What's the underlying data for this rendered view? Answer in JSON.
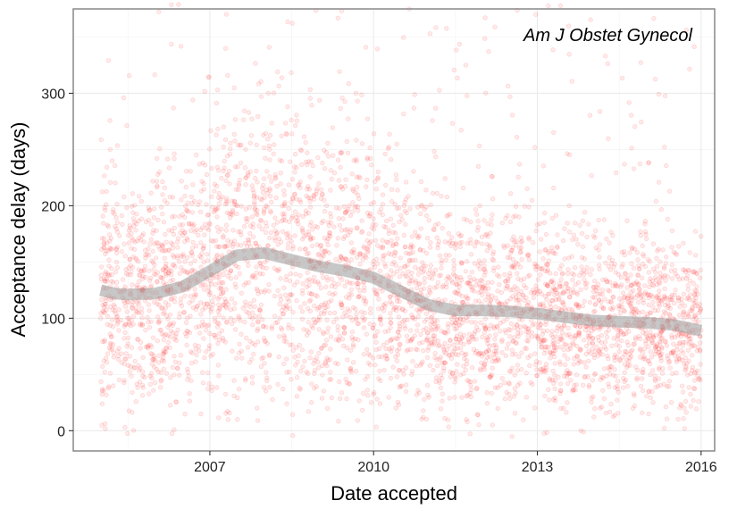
{
  "chart_data": {
    "type": "scatter",
    "annotation": "Am J Obstet Gynecol",
    "xlabel": "Date accepted",
    "ylabel": "Acceptance delay (days)",
    "x_scale": "date",
    "xlim": [
      "2004-07-01",
      "2016-04-01"
    ],
    "ylim": [
      -18,
      375
    ],
    "x_ticks": [
      {
        "date": "2007-01-01",
        "label": "2007"
      },
      {
        "date": "2010-01-01",
        "label": "2010"
      },
      {
        "date": "2013-01-01",
        "label": "2013"
      },
      {
        "date": "2016-01-01",
        "label": "2016"
      }
    ],
    "y_ticks": [
      {
        "value": 0,
        "label": "0"
      },
      {
        "value": 100,
        "label": "100"
      },
      {
        "value": 200,
        "label": "200"
      },
      {
        "value": 300,
        "label": "300"
      }
    ],
    "grid": true,
    "point_color": "#ff0000",
    "point_opacity": 0.13,
    "smooth_color": "#999999",
    "date_range": [
      "2005-01-01",
      "2016-01-01"
    ],
    "smooth": [
      {
        "date": "2005-01-01",
        "y": 125
      },
      {
        "date": "2005-04-01",
        "y": 122
      },
      {
        "date": "2005-07-01",
        "y": 121
      },
      {
        "date": "2006-01-01",
        "y": 122
      },
      {
        "date": "2006-07-01",
        "y": 128
      },
      {
        "date": "2007-01-01",
        "y": 142
      },
      {
        "date": "2007-07-01",
        "y": 156
      },
      {
        "date": "2008-01-01",
        "y": 158
      },
      {
        "date": "2008-07-01",
        "y": 152
      },
      {
        "date": "2009-01-01",
        "y": 146
      },
      {
        "date": "2009-07-01",
        "y": 142
      },
      {
        "date": "2010-01-01",
        "y": 136
      },
      {
        "date": "2010-07-01",
        "y": 124
      },
      {
        "date": "2011-01-01",
        "y": 112
      },
      {
        "date": "2011-07-01",
        "y": 107
      },
      {
        "date": "2012-01-01",
        "y": 107
      },
      {
        "date": "2012-07-01",
        "y": 106
      },
      {
        "date": "2013-01-01",
        "y": 104
      },
      {
        "date": "2013-07-01",
        "y": 101
      },
      {
        "date": "2014-01-01",
        "y": 98
      },
      {
        "date": "2014-07-01",
        "y": 97
      },
      {
        "date": "2015-01-01",
        "y": 96
      },
      {
        "date": "2015-07-01",
        "y": 94
      },
      {
        "date": "2016-01-01",
        "y": 89
      }
    ]
  }
}
